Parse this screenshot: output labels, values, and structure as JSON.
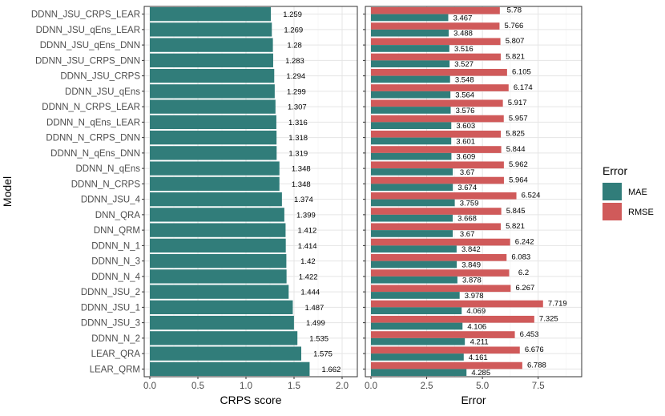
{
  "chart_data": [
    {
      "type": "bar",
      "orientation": "horizontal",
      "title": "",
      "xlabel": "CRPS score",
      "ylabel": "Model",
      "xlim": [
        0,
        2.1
      ],
      "xticks": [
        0.0,
        0.5,
        1.0,
        1.5,
        2.0
      ],
      "xtick_labels": [
        "0.0",
        "0.5",
        "1.0",
        "1.5",
        "2.0"
      ],
      "grid": true,
      "bar_color": "#317D7A",
      "categories": [
        "DDNN_JSU_CRPS_LEAR",
        "DDNN_JSU_qEns_LEAR",
        "DDNN_JSU_qEns_DNN",
        "DDNN_JSU_CRPS_DNN",
        "DDNN_JSU_CRPS",
        "DDNN_JSU_qEns",
        "DDNN_N_CRPS_LEAR",
        "DDNN_N_qEns_LEAR",
        "DDNN_N_CRPS_DNN",
        "DDNN_N_qEns_DNN",
        "DDNN_N_qEns",
        "DDNN_N_CRPS",
        "DDNN_JSU_4",
        "DNN_QRA",
        "DNN_QRM",
        "DDNN_N_1",
        "DDNN_N_3",
        "DDNN_N_4",
        "DDNN_JSU_2",
        "DDNN_JSU_1",
        "DDNN_JSU_3",
        "DDNN_N_2",
        "LEAR_QRA",
        "LEAR_QRM"
      ],
      "values": [
        1.259,
        1.269,
        1.28,
        1.283,
        1.294,
        1.299,
        1.307,
        1.316,
        1.318,
        1.319,
        1.348,
        1.348,
        1.374,
        1.399,
        1.412,
        1.414,
        1.42,
        1.422,
        1.444,
        1.487,
        1.499,
        1.535,
        1.575,
        1.662
      ],
      "value_labels": [
        "1.259",
        "1.269",
        "1.28",
        "1.283",
        "1.294",
        "1.299",
        "1.307",
        "1.316",
        "1.318",
        "1.319",
        "1.348",
        "1.348",
        "1.374",
        "1.399",
        "1.412",
        "1.414",
        "1.42",
        "1.422",
        "1.444",
        "1.487",
        "1.499",
        "1.535",
        "1.575",
        "1.662"
      ]
    },
    {
      "type": "bar",
      "orientation": "horizontal",
      "title": "",
      "xlabel": "Error",
      "ylabel": "",
      "xlim": [
        0,
        9.2
      ],
      "xticks": [
        0.0,
        2.5,
        5.0,
        7.5
      ],
      "xtick_labels": [
        "0.0",
        "2.5",
        "5.0",
        "7.5"
      ],
      "grid": true,
      "legend": {
        "title": "Error",
        "position": "right"
      },
      "categories": [
        "DDNN_JSU_CRPS_LEAR",
        "DDNN_JSU_qEns_LEAR",
        "DDNN_JSU_qEns_DNN",
        "DDNN_JSU_CRPS_DNN",
        "DDNN_JSU_CRPS",
        "DDNN_JSU_qEns",
        "DDNN_N_CRPS_LEAR",
        "DDNN_N_qEns_LEAR",
        "DDNN_N_CRPS_DNN",
        "DDNN_N_qEns_DNN",
        "DDNN_N_qEns",
        "DDNN_N_CRPS",
        "DDNN_JSU_4",
        "DNN_QRA",
        "DNN_QRM",
        "DDNN_N_1",
        "DDNN_N_3",
        "DDNN_N_4",
        "DDNN_JSU_2",
        "DDNN_JSU_1",
        "DDNN_JSU_3",
        "DDNN_N_2",
        "LEAR_QRA",
        "LEAR_QRM"
      ],
      "series": [
        {
          "name": "MAE",
          "color": "#317D7A",
          "values": [
            3.467,
            3.488,
            3.516,
            3.527,
            3.548,
            3.564,
            3.576,
            3.603,
            3.601,
            3.609,
            3.67,
            3.674,
            3.759,
            3.668,
            3.67,
            3.842,
            3.849,
            3.878,
            3.978,
            4.069,
            4.106,
            4.211,
            4.161,
            4.285
          ],
          "value_labels": [
            "3.467",
            "3.488",
            "3.516",
            "3.527",
            "3.548",
            "3.564",
            "3.576",
            "3.603",
            "3.601",
            "3.609",
            "3.67",
            "3.674",
            "3.759",
            "3.668",
            "3.67",
            "3.842",
            "3.849",
            "3.878",
            "3.978",
            "4.069",
            "4.106",
            "4.211",
            "4.161",
            "4.285"
          ]
        },
        {
          "name": "RMSE",
          "color": "#D05A5A",
          "values": [
            5.78,
            5.766,
            5.807,
            5.821,
            6.105,
            6.174,
            5.917,
            5.957,
            5.825,
            5.844,
            5.962,
            5.964,
            6.524,
            5.845,
            5.821,
            6.242,
            6.083,
            6.2,
            6.267,
            7.719,
            7.325,
            6.453,
            6.676,
            6.788
          ],
          "value_labels": [
            "5.78",
            "5.766",
            "5.807",
            "5.821",
            "6.105",
            "6.174",
            "5.917",
            "5.957",
            "5.825",
            "5.844",
            "5.962",
            "5.964",
            "6.524",
            "5.845",
            "5.821",
            "6.242",
            "6.083",
            "6.2",
            "6.267",
            "7.719",
            "7.325",
            "6.453",
            "6.676",
            "6.788"
          ]
        }
      ]
    }
  ]
}
